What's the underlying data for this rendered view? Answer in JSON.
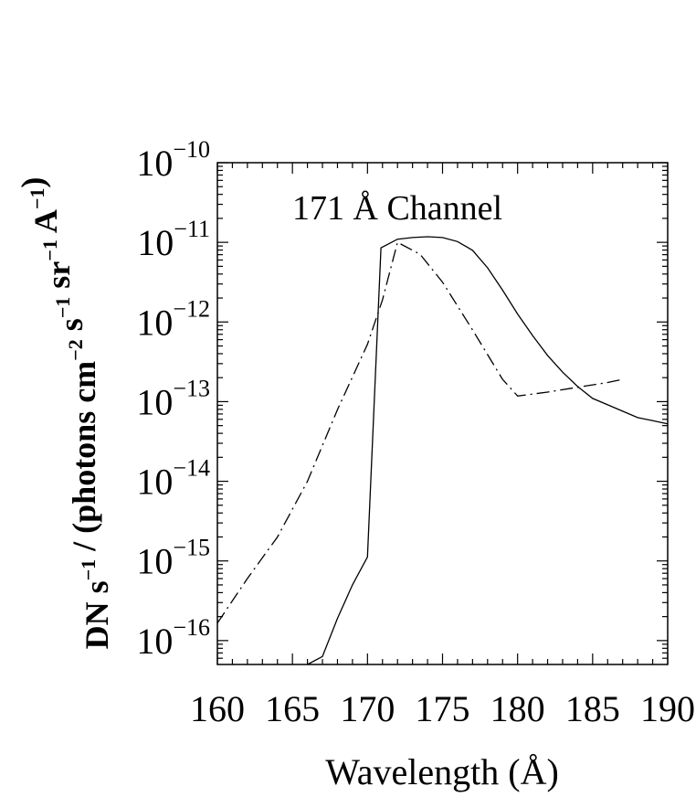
{
  "chart_data": {
    "type": "line",
    "title": "171 Å Channel",
    "xlabel": "Wavelength (Å)",
    "ylabel_parts": [
      {
        "text": "DN s",
        "sup": "−1"
      },
      {
        "text": " / (photons cm",
        "sup": "−2"
      },
      {
        "text": " s",
        "sup": "−1"
      },
      {
        "text": " sr",
        "sup": "−1"
      },
      {
        "text": " A",
        "sup": "−1"
      },
      {
        "text": ")",
        "sup": ""
      }
    ],
    "xlim": [
      160,
      190
    ],
    "ylim_log10": [
      -16.3,
      -10
    ],
    "y_scale": "log",
    "x_ticks": [
      "160",
      "165",
      "170",
      "175",
      "180",
      "185",
      "190"
    ],
    "y_ticks": [
      {
        "base": "10",
        "exp": "−10",
        "log": -10
      },
      {
        "base": "10",
        "exp": "−11",
        "log": -11
      },
      {
        "base": "10",
        "exp": "−12",
        "log": -12
      },
      {
        "base": "10",
        "exp": "−13",
        "log": -13
      },
      {
        "base": "10",
        "exp": "−14",
        "log": -14
      },
      {
        "base": "10",
        "exp": "−15",
        "log": -15
      },
      {
        "base": "10",
        "exp": "−16",
        "log": -16
      }
    ],
    "series": [
      {
        "style": "solid",
        "x": [
          166.0,
          167.0,
          168.0,
          169.0,
          170.0,
          170.9,
          172.0,
          173.0,
          174.0,
          175.0,
          176.0,
          177.0,
          178.0,
          179.0,
          180.0,
          181.0,
          182.0,
          183.0,
          184.0,
          185.0,
          186.0,
          187.0,
          188.0,
          189.0,
          190.0
        ],
        "log10_y": [
          -16.3,
          -16.2,
          -15.72,
          -15.3,
          -14.95,
          -11.07,
          -10.96,
          -10.94,
          -10.93,
          -10.94,
          -10.99,
          -11.1,
          -11.32,
          -11.6,
          -11.9,
          -12.17,
          -12.42,
          -12.63,
          -12.81,
          -12.96,
          -13.04,
          -13.12,
          -13.2,
          -13.24,
          -13.28
        ]
      },
      {
        "style": "dashdot",
        "x": [
          160.0,
          162.0,
          164.0,
          166.0,
          168.0,
          170.0,
          171.0,
          172.0,
          173.5,
          175.0,
          177.0,
          179.0,
          180.0,
          182.0,
          184.0,
          186.0,
          187.0
        ],
        "log10_y": [
          -15.78,
          -15.22,
          -14.7,
          -14.0,
          -13.1,
          -12.28,
          -11.72,
          -11.0,
          -11.15,
          -11.5,
          -12.1,
          -12.72,
          -12.93,
          -12.88,
          -12.82,
          -12.76,
          -12.72
        ]
      }
    ],
    "grid": false,
    "legend": "none"
  }
}
